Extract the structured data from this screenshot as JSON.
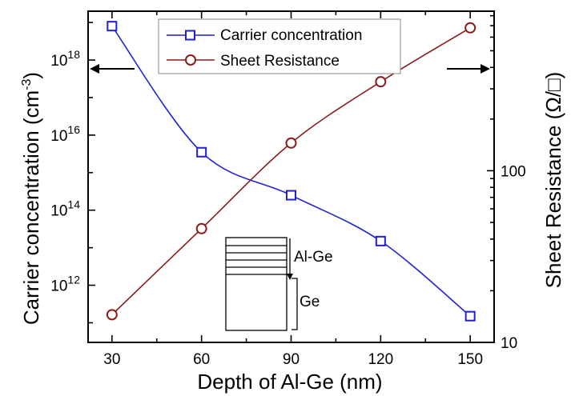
{
  "chart_data": {
    "type": "line",
    "x": [
      30,
      60,
      90,
      120,
      150
    ],
    "xlabel": "Depth of Al-Ge (nm)",
    "xticks": [
      "30",
      "60",
      "90",
      "120",
      "150"
    ],
    "xlim": [
      22,
      158
    ],
    "series": [
      {
        "name": "Carrier concentration",
        "axis": "left",
        "marker": "square",
        "color": "#1f1fdd",
        "values": [
          8e+18,
          3500000000000000.0,
          250000000000000.0,
          15000000000000.0,
          150000000000.0
        ]
      },
      {
        "name": "Sheet Resistance",
        "axis": "right",
        "marker": "circle",
        "color": "#8b1a1a",
        "values": [
          14.5,
          46,
          145,
          330,
          680
        ]
      }
    ],
    "left_axis": {
      "label_main": "Carrier concentration (cm",
      "label_sup": "-3",
      "label_close": ")",
      "scale": "log",
      "ylim": [
        30000000000.0,
        2e+19
      ],
      "tick_labels": [
        {
          "base": "10",
          "exp": "12",
          "value": 1000000000000.0
        },
        {
          "base": "10",
          "exp": "14",
          "value": 100000000000000.0
        },
        {
          "base": "10",
          "exp": "16",
          "value": 1e+16
        },
        {
          "base": "10",
          "exp": "18",
          "value": 1e+18
        }
      ]
    },
    "right_axis": {
      "label": "Sheet Resistance (Ω/□)",
      "scale": "log",
      "ylim": [
        10,
        850
      ],
      "tick_labels": [
        {
          "text": "10",
          "value": 10
        },
        {
          "text": "100",
          "value": 100
        }
      ]
    },
    "annotations": {
      "inset_top_label": "Al-Ge",
      "inset_bottom_label": "Ge"
    },
    "legend_placement": "top-center",
    "grid": false
  }
}
